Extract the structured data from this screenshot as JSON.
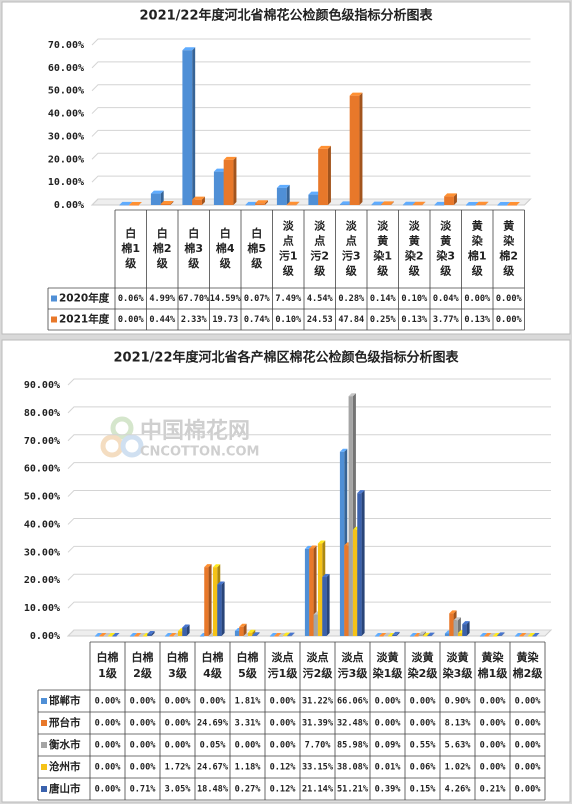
{
  "chart_data": [
    {
      "type": "bar",
      "title": "2021/22年度河北省棉花公检颜色级指标分析图表",
      "categories": [
        "白棉1级",
        "白棉2级",
        "白棉3级",
        "白棉4级",
        "白棉5级",
        "淡点污1级",
        "淡点污2级",
        "淡点污3级",
        "淡黄染1级",
        "淡黄染2级",
        "淡黄染3级",
        "黄染棉1级",
        "黄染棉2级"
      ],
      "series": [
        {
          "name": "2020年度",
          "color": "#4f8fd6",
          "values": [
            0.06,
            4.99,
            67.7,
            14.59,
            0.07,
            7.49,
            4.54,
            0.28,
            0.14,
            0.1,
            0.04,
            0.0,
            0.0
          ],
          "value_labels": [
            "0.06%",
            "4.99%",
            "67.70%",
            "14.59%",
            "0.07%",
            "7.49%",
            "4.54%",
            "0.28%",
            "0.14%",
            "0.10%",
            "0.04%",
            "0.00%",
            "0.00%"
          ]
        },
        {
          "name": "2021年度",
          "color": "#e8782a",
          "values": [
            0.0,
            0.44,
            2.33,
            19.73,
            0.74,
            0.1,
            24.53,
            47.84,
            0.25,
            0.13,
            3.77,
            0.13,
            0.0
          ],
          "value_labels": [
            "0.00%",
            "0.44%",
            "2.33%",
            "19.73",
            "0.74%",
            "0.10%",
            "24.53",
            "47.84",
            "0.25%",
            "0.13%",
            "3.77%",
            "0.13%",
            "0.00%"
          ]
        }
      ],
      "ylim": [
        0,
        70
      ],
      "yticks": [
        {
          "value": 0,
          "label": "0.00%"
        },
        {
          "value": 10,
          "label": "10.00%"
        },
        {
          "value": 20,
          "label": "20.00%"
        },
        {
          "value": 30,
          "label": "30.00%"
        },
        {
          "value": 40,
          "label": "40.00%"
        },
        {
          "value": 50,
          "label": "50.00%"
        },
        {
          "value": 60,
          "label": "60.00%"
        },
        {
          "value": 70,
          "label": "70.00%"
        }
      ],
      "grid": true,
      "data_table": true
    },
    {
      "type": "bar",
      "title": "2021/22年度河北省各产棉区棉花公检颜色级指标分析图表",
      "watermark": [
        "中国棉花网",
        "CNCOTTON.COM"
      ],
      "categories": [
        "白棉1级",
        "白棉2级",
        "白棉3级",
        "白棉4级",
        "白棉5级",
        "淡点污1级",
        "淡点污2级",
        "淡点污3级",
        "淡黄染1级",
        "淡黄染2级",
        "淡黄染3级",
        "黄染棉1级",
        "黄染棉2级"
      ],
      "series": [
        {
          "name": "邯郸市",
          "color": "#4f8fd6",
          "values": [
            0.0,
            0.0,
            0.0,
            0.0,
            1.81,
            0.0,
            31.22,
            66.06,
            0.0,
            0.0,
            0.9,
            0.0,
            0.0
          ],
          "value_labels": [
            "0.00%",
            "0.00%",
            "0.00%",
            "0.00%",
            "1.81%",
            "0.00%",
            "31.22%",
            "66.06%",
            "0.00%",
            "0.00%",
            "0.90%",
            "0.00%",
            "0.00%"
          ]
        },
        {
          "name": "邢台市",
          "color": "#e8782a",
          "values": [
            0.0,
            0.0,
            0.0,
            24.69,
            3.31,
            0.0,
            31.39,
            32.48,
            0.0,
            0.0,
            8.13,
            0.0,
            0.0
          ],
          "value_labels": [
            "0.00%",
            "0.00%",
            "0.00%",
            "24.69%",
            "3.31%",
            "0.00%",
            "31.39%",
            "32.48%",
            "0.00%",
            "0.00%",
            "8.13%",
            "0.00%",
            "0.00%"
          ]
        },
        {
          "name": "衡水市",
          "color": "#a5a5a5",
          "values": [
            0.0,
            0.0,
            0.0,
            0.05,
            0.0,
            0.0,
            7.7,
            85.98,
            0.09,
            0.55,
            5.63,
            0.0,
            0.0
          ],
          "value_labels": [
            "0.00%",
            "0.00%",
            "0.00%",
            "0.05%",
            "0.00%",
            "0.00%",
            "7.70%",
            "85.98%",
            "0.09%",
            "0.55%",
            "5.63%",
            "0.00%",
            "0.00%"
          ]
        },
        {
          "name": "沧州市",
          "color": "#f5c217",
          "values": [
            0.0,
            0.0,
            1.72,
            24.67,
            1.18,
            0.12,
            33.15,
            38.08,
            0.01,
            0.06,
            1.02,
            0.0,
            0.0
          ],
          "value_labels": [
            "0.00%",
            "0.00%",
            "1.72%",
            "24.67%",
            "1.18%",
            "0.12%",
            "33.15%",
            "38.08%",
            "0.01%",
            "0.06%",
            "1.02%",
            "0.00%",
            "0.00%"
          ]
        },
        {
          "name": "唐山市",
          "color": "#3b62ad",
          "values": [
            0.0,
            0.71,
            3.05,
            18.48,
            0.27,
            0.12,
            21.14,
            51.21,
            0.39,
            0.15,
            4.26,
            0.21,
            0.0
          ],
          "value_labels": [
            "0.00%",
            "0.71%",
            "3.05%",
            "18.48%",
            "0.27%",
            "0.12%",
            "21.14%",
            "51.21%",
            "0.39%",
            "0.15%",
            "4.26%",
            "0.21%",
            "0.00%"
          ]
        }
      ],
      "ylim": [
        0,
        90
      ],
      "yticks": [
        {
          "value": 0,
          "label": "0.00%"
        },
        {
          "value": 10,
          "label": "10.00%"
        },
        {
          "value": 20,
          "label": "20.00%"
        },
        {
          "value": 30,
          "label": "30.00%"
        },
        {
          "value": 40,
          "label": "40.00%"
        },
        {
          "value": 50,
          "label": "50.00%"
        },
        {
          "value": 60,
          "label": "60.00%"
        },
        {
          "value": 70,
          "label": "70.00%"
        },
        {
          "value": 80,
          "label": "80.00%"
        },
        {
          "value": 90,
          "label": "90.00%"
        }
      ],
      "grid": true,
      "data_table": true
    }
  ]
}
